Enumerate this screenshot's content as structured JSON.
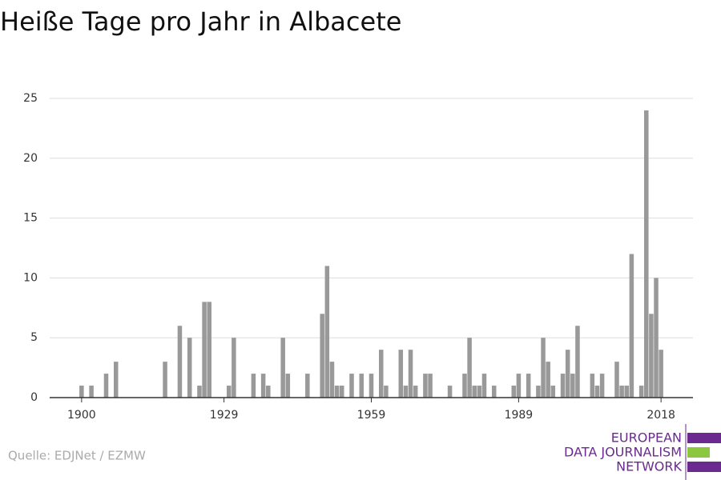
{
  "chart_data": {
    "type": "bar",
    "title": "Heiße Tage pro Jahr in Albacete",
    "x": [
      1900,
      1901,
      1902,
      1903,
      1904,
      1905,
      1906,
      1907,
      1908,
      1909,
      1910,
      1911,
      1912,
      1913,
      1914,
      1915,
      1916,
      1917,
      1918,
      1919,
      1920,
      1921,
      1922,
      1923,
      1924,
      1925,
      1926,
      1927,
      1928,
      1929,
      1930,
      1931,
      1932,
      1933,
      1934,
      1935,
      1936,
      1937,
      1938,
      1939,
      1940,
      1941,
      1942,
      1943,
      1944,
      1945,
      1946,
      1947,
      1948,
      1949,
      1950,
      1951,
      1952,
      1953,
      1954,
      1955,
      1956,
      1957,
      1958,
      1959,
      1960,
      1961,
      1962,
      1963,
      1964,
      1965,
      1966,
      1967,
      1968,
      1969,
      1970,
      1971,
      1972,
      1973,
      1974,
      1975,
      1976,
      1977,
      1978,
      1979,
      1980,
      1981,
      1982,
      1983,
      1984,
      1985,
      1986,
      1987,
      1988,
      1989,
      1990,
      1991,
      1992,
      1993,
      1994,
      1995,
      1996,
      1997,
      1998,
      1999,
      2000,
      2001,
      2002,
      2003,
      2004,
      2005,
      2006,
      2007,
      2008,
      2009,
      2010,
      2011,
      2012,
      2013,
      2014,
      2015,
      2016,
      2017,
      2018
    ],
    "values": [
      1,
      0,
      1,
      0,
      0,
      2,
      0,
      3,
      0,
      0,
      0,
      0,
      0,
      0,
      0,
      0,
      0,
      3,
      0,
      0,
      6,
      0,
      5,
      0,
      1,
      8,
      8,
      0,
      0,
      0,
      1,
      5,
      0,
      0,
      0,
      2,
      0,
      2,
      1,
      0,
      0,
      5,
      2,
      0,
      0,
      0,
      2,
      0,
      0,
      7,
      11,
      3,
      1,
      1,
      0,
      2,
      0,
      2,
      0,
      2,
      0,
      4,
      1,
      0,
      0,
      4,
      1,
      4,
      1,
      0,
      2,
      2,
      0,
      0,
      0,
      1,
      0,
      0,
      2,
      5,
      1,
      1,
      2,
      0,
      1,
      0,
      0,
      0,
      1,
      2,
      0,
      2,
      0,
      1,
      5,
      3,
      1,
      0,
      2,
      4,
      2,
      6,
      0,
      0,
      2,
      1,
      2,
      0,
      0,
      3,
      1,
      1,
      12,
      0,
      1,
      24,
      7,
      10,
      4
    ],
    "color": "#999999",
    "xlim": [
      1893.5,
      2024.5
    ],
    "xticks": [
      1900,
      1929,
      1959,
      1989,
      2018
    ],
    "ylim": [
      0,
      25
    ],
    "yticks": [
      0,
      5,
      10,
      15,
      20,
      25
    ],
    "grid": true
  },
  "source": "Quelle: EDJNet / EZMW",
  "logo": {
    "line1": "EUROPEAN",
    "line2": "DATA JOURNALISM",
    "line3": "NETWORK"
  }
}
